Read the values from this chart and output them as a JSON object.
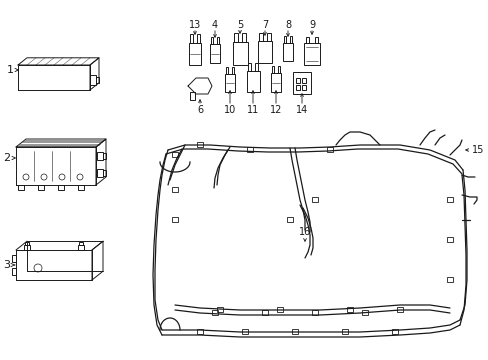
{
  "bg": "#ffffff",
  "lc": "#1a1a1a",
  "lw": 0.7,
  "fig_w": 4.89,
  "fig_h": 3.6,
  "dpi": 100,
  "labels_top": [
    [
      "13",
      210
    ],
    [
      "4",
      228
    ],
    [
      "5",
      252
    ],
    [
      "7",
      277
    ],
    [
      "8",
      300
    ],
    [
      "9",
      322
    ]
  ],
  "labels_bot": [
    [
      "6",
      205
    ],
    [
      "10",
      238
    ],
    [
      "11",
      260
    ],
    [
      "12",
      282
    ],
    [
      "14",
      308
    ]
  ]
}
